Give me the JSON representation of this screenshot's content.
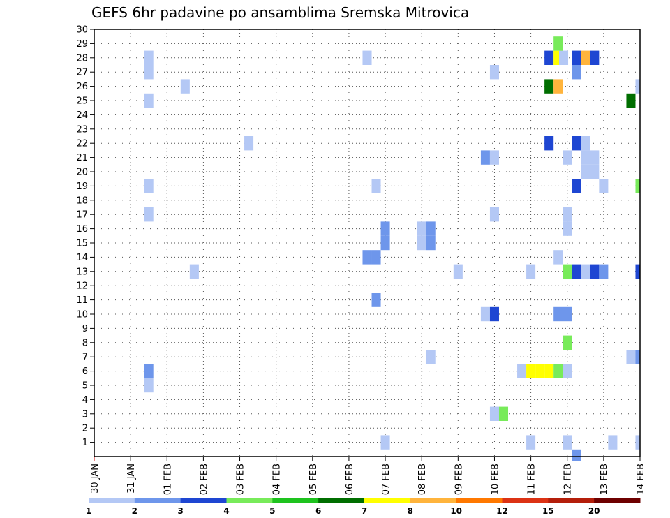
{
  "chart_data": {
    "type": "heatmap",
    "title": "GEFS 6hr padavine po ansamblima Sremska Mitrovica",
    "x_categories": [
      "30 JAN",
      "31 JAN",
      "01 FEB",
      "02 FEB",
      "03 FEB",
      "04 FEB",
      "05 FEB",
      "06 FEB",
      "07 FEB",
      "08 FEB",
      "09 FEB",
      "10 FEB",
      "11 FEB",
      "12 FEB",
      "13 FEB",
      "14 FEB"
    ],
    "ylim": [
      0,
      30
    ],
    "y_ticks": [
      1,
      2,
      3,
      4,
      5,
      6,
      7,
      8,
      9,
      10,
      11,
      12,
      13,
      14,
      15,
      16,
      17,
      18,
      19,
      20,
      21,
      22,
      23,
      24,
      25,
      26,
      27,
      28,
      29,
      30
    ],
    "grid": "dotted",
    "legend": {
      "position": "bottom",
      "levels": [
        1,
        2,
        3,
        4,
        5,
        6,
        7,
        8,
        10,
        12,
        15,
        20
      ],
      "tick_labels": [
        "1",
        "2",
        "3",
        "4",
        "5",
        "6",
        "7",
        "8",
        "10",
        "12",
        "15",
        "20"
      ],
      "colors": [
        "#b4c8f5",
        "#6e96eb",
        "#1e46d2",
        "#78eb5a",
        "#1ec31e",
        "#006e00",
        "#ffff00",
        "#ffb43c",
        "#ff7800",
        "#dc3214",
        "#b41e0a",
        "#6e0000"
      ]
    },
    "cells": [
      {
        "x": 1.5,
        "y": 28,
        "v": 1
      },
      {
        "x": 7.5,
        "y": 28,
        "v": 1
      },
      {
        "x": 12.5,
        "y": 28,
        "v": 3
      },
      {
        "x": 12.75,
        "y": 28,
        "v": 7
      },
      {
        "x": 12.9,
        "y": 28,
        "v": 1
      },
      {
        "x": 13.25,
        "y": 28,
        "v": 3
      },
      {
        "x": 13.5,
        "y": 28,
        "v": 8
      },
      {
        "x": 13.75,
        "y": 28,
        "v": 3
      },
      {
        "x": 12.75,
        "y": 29,
        "v": 4
      },
      {
        "x": 1.5,
        "y": 27,
        "v": 1
      },
      {
        "x": 11,
        "y": 27,
        "v": 1
      },
      {
        "x": 13.25,
        "y": 27,
        "v": 2
      },
      {
        "x": 2.5,
        "y": 26,
        "v": 1
      },
      {
        "x": 12.5,
        "y": 26,
        "v": 6
      },
      {
        "x": 12.75,
        "y": 26,
        "v": 8
      },
      {
        "x": 15,
        "y": 26,
        "v": 1
      },
      {
        "x": 1.5,
        "y": 25,
        "v": 1
      },
      {
        "x": 14.75,
        "y": 25,
        "v": 6
      },
      {
        "x": 4.25,
        "y": 22,
        "v": 1
      },
      {
        "x": 12.5,
        "y": 22,
        "v": 3
      },
      {
        "x": 13.25,
        "y": 22,
        "v": 3
      },
      {
        "x": 13.5,
        "y": 22,
        "v": 1
      },
      {
        "x": 10.75,
        "y": 21,
        "v": 2
      },
      {
        "x": 11,
        "y": 21,
        "v": 1
      },
      {
        "x": 13,
        "y": 21,
        "v": 1
      },
      {
        "x": 13.5,
        "y": 21,
        "v": 1
      },
      {
        "x": 13.75,
        "y": 21,
        "v": 1
      },
      {
        "x": 13.5,
        "y": 20,
        "v": 1
      },
      {
        "x": 13.75,
        "y": 20,
        "v": 1
      },
      {
        "x": 1.5,
        "y": 19,
        "v": 1
      },
      {
        "x": 7.75,
        "y": 19,
        "v": 1
      },
      {
        "x": 13.25,
        "y": 19,
        "v": 3
      },
      {
        "x": 14,
        "y": 19,
        "v": 1
      },
      {
        "x": 15,
        "y": 19,
        "v": 4
      },
      {
        "x": 1.5,
        "y": 17,
        "v": 1
      },
      {
        "x": 11,
        "y": 17,
        "v": 1
      },
      {
        "x": 13,
        "y": 17,
        "v": 1
      },
      {
        "x": 8,
        "y": 16,
        "v": 2
      },
      {
        "x": 9,
        "y": 16,
        "v": 1
      },
      {
        "x": 9.25,
        "y": 16,
        "v": 2
      },
      {
        "x": 13,
        "y": 16,
        "v": 1
      },
      {
        "x": 8,
        "y": 15,
        "v": 2
      },
      {
        "x": 9.25,
        "y": 15,
        "v": 2
      },
      {
        "x": 9,
        "y": 15,
        "v": 1
      },
      {
        "x": 7.5,
        "y": 14,
        "v": 2
      },
      {
        "x": 7.75,
        "y": 14,
        "v": 2
      },
      {
        "x": 12.75,
        "y": 14,
        "v": 1
      },
      {
        "x": 2.75,
        "y": 13,
        "v": 1
      },
      {
        "x": 10,
        "y": 13,
        "v": 1
      },
      {
        "x": 12,
        "y": 13,
        "v": 1
      },
      {
        "x": 13,
        "y": 13,
        "v": 4
      },
      {
        "x": 13.25,
        "y": 13,
        "v": 3
      },
      {
        "x": 13.5,
        "y": 13,
        "v": 1
      },
      {
        "x": 13.75,
        "y": 13,
        "v": 3
      },
      {
        "x": 14,
        "y": 13,
        "v": 2
      },
      {
        "x": 15,
        "y": 13,
        "v": 3
      },
      {
        "x": 7.75,
        "y": 11,
        "v": 2
      },
      {
        "x": 10.75,
        "y": 10,
        "v": 1
      },
      {
        "x": 11,
        "y": 10,
        "v": 3
      },
      {
        "x": 12.75,
        "y": 10,
        "v": 2
      },
      {
        "x": 13,
        "y": 10,
        "v": 2
      },
      {
        "x": 13,
        "y": 8,
        "v": 4
      },
      {
        "x": 9.25,
        "y": 7,
        "v": 1
      },
      {
        "x": 14.75,
        "y": 7,
        "v": 1
      },
      {
        "x": 15,
        "y": 7,
        "v": 2
      },
      {
        "x": 1.5,
        "y": 6,
        "v": 2
      },
      {
        "x": 11.75,
        "y": 6,
        "v": 1
      },
      {
        "x": 12,
        "y": 6,
        "v": 7
      },
      {
        "x": 12.25,
        "y": 6,
        "v": 7
      },
      {
        "x": 12.5,
        "y": 6,
        "v": 7
      },
      {
        "x": 12.75,
        "y": 6,
        "v": 4
      },
      {
        "x": 13,
        "y": 6,
        "v": 1
      },
      {
        "x": 1.5,
        "y": 5,
        "v": 1
      },
      {
        "x": 11,
        "y": 3,
        "v": 1
      },
      {
        "x": 11.25,
        "y": 3,
        "v": 4
      },
      {
        "x": 8,
        "y": 1,
        "v": 1
      },
      {
        "x": 12,
        "y": 1,
        "v": 1
      },
      {
        "x": 13,
        "y": 1,
        "v": 1
      },
      {
        "x": 14.25,
        "y": 1,
        "v": 1
      },
      {
        "x": 15,
        "y": 1,
        "v": 1
      },
      {
        "x": 13.25,
        "y": 0,
        "v": 2
      }
    ]
  }
}
